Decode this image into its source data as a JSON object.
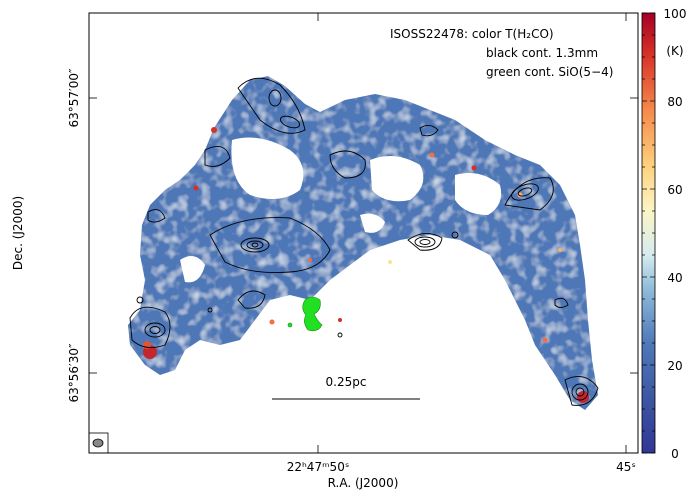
{
  "chart_data": {
    "type": "heatmap",
    "title": "",
    "annotation_lines": [
      "ISOSS22478: color T(H₂CO)",
      "black cont. 1.3mm",
      "green cont. SiO(5−4)"
    ],
    "xlabel": "R.A. (J2000)",
    "ylabel": "Dec. (J2000)",
    "x_ticks": [
      {
        "text": "22ʰ47ᵐ50ˢ",
        "value": "22:47:50"
      },
      {
        "text": "45ˢ",
        "value": "22:47:45"
      }
    ],
    "y_ticks": [
      {
        "text": "63°57′00″",
        "value": "63:57:00"
      },
      {
        "text": "63°56′30″",
        "value": "63:56:30"
      }
    ],
    "colorbar": {
      "label": "(K)",
      "min": 0,
      "max": 100,
      "ticks": [
        0,
        20,
        40,
        60,
        80,
        100
      ],
      "colormap": "RdYlBu_r"
    },
    "scalebar_label": "0.25pc",
    "beam": "circle (lower-left corner)",
    "color_map_stops": [
      "#3c4ea0",
      "#4a75b7",
      "#74a7d0",
      "#bfe0ec",
      "#f2f1c8",
      "#f7c46f",
      "#ef7a43",
      "#c92a2a",
      "#9e0142"
    ],
    "contour_colors": {
      "continuum": "#000000",
      "sio": "#21e021"
    }
  }
}
